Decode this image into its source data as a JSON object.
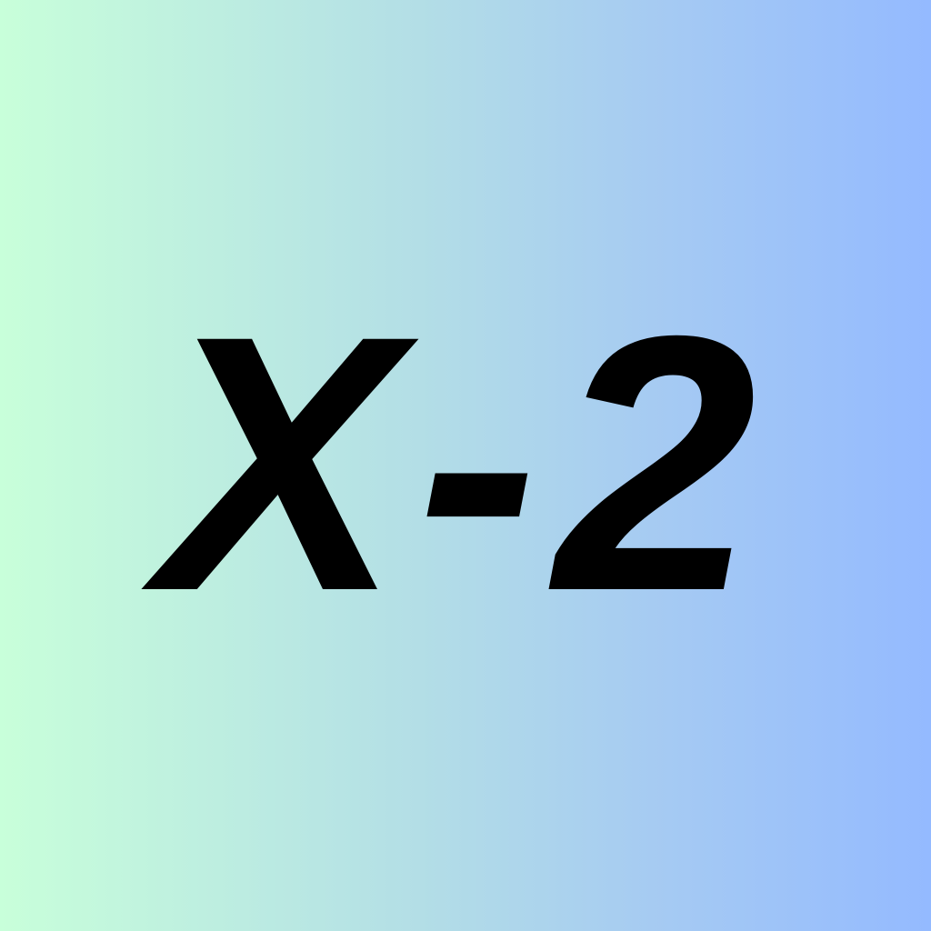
{
  "label": {
    "text": "X-2"
  },
  "colors": {
    "gradient_start": "#C8FFDA",
    "gradient_end": "#94BAFF",
    "text": "#000000"
  }
}
